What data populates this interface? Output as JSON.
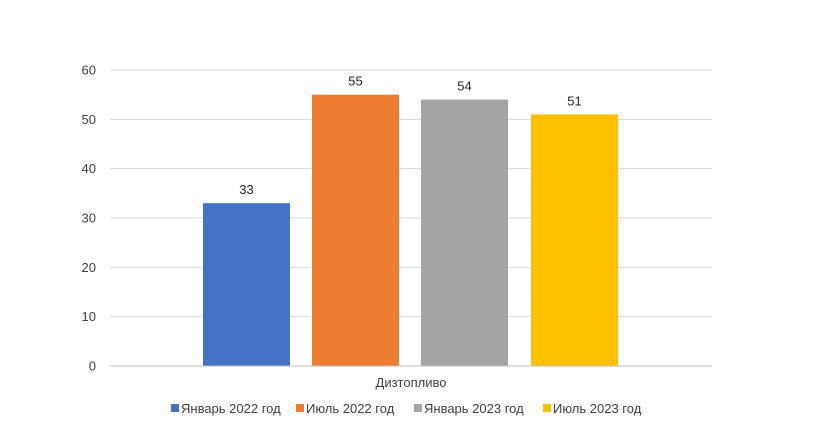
{
  "chart_data": {
    "type": "bar",
    "categories": [
      "Дизтопливо"
    ],
    "series": [
      {
        "name": "Январь 2022 год",
        "values": [
          33
        ],
        "color": "#4472C4"
      },
      {
        "name": "Июль 2022 год",
        "values": [
          55
        ],
        "color": "#ED7D31"
      },
      {
        "name": "Январь 2023 год",
        "values": [
          54
        ],
        "color": "#A5A5A5"
      },
      {
        "name": "Июль 2023 год",
        "values": [
          51
        ],
        "color": "#FFC000"
      }
    ],
    "ylim": [
      0,
      60
    ],
    "yticks": [
      0,
      10,
      20,
      30,
      40,
      50,
      60
    ],
    "grid": true,
    "legend": "bottom",
    "gridColor": "#D9D9D9",
    "axisColor": "#BFBFBF"
  }
}
